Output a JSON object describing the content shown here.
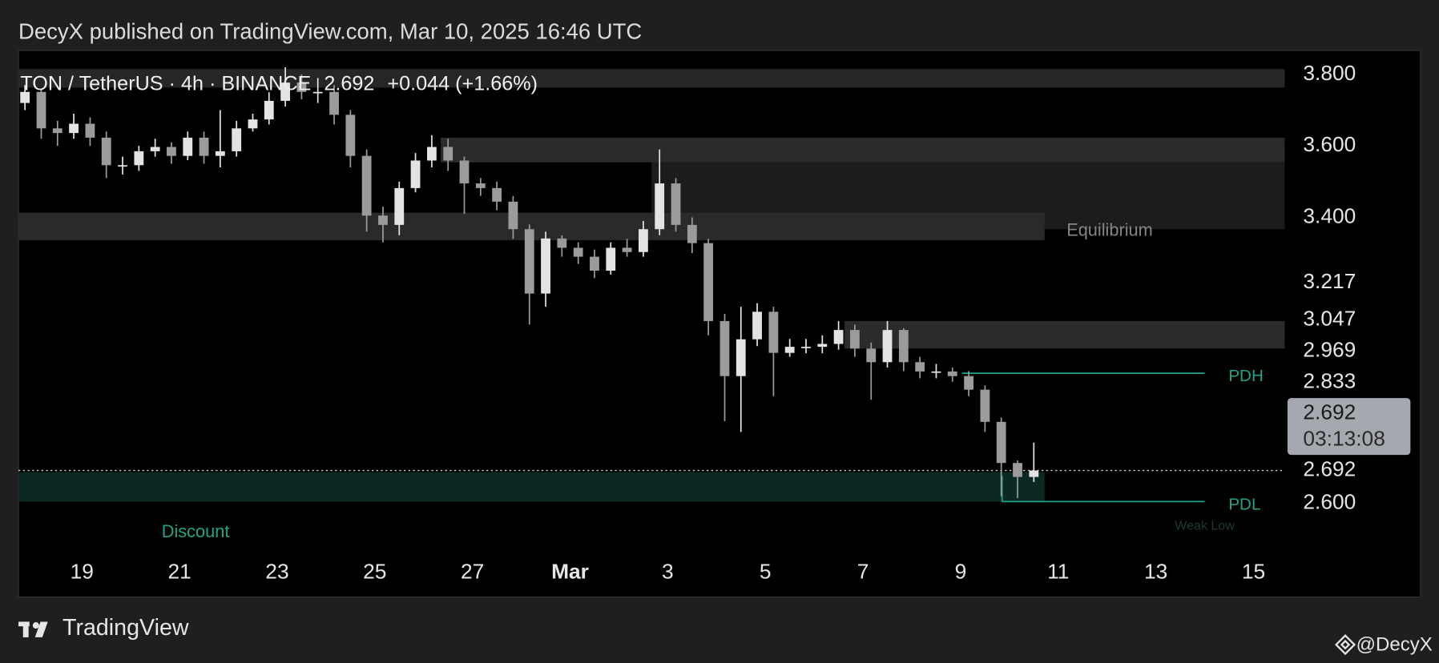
{
  "header": {
    "published": "DecyX published on TradingView.com, Mar 10, 2025 16:46 UTC"
  },
  "footer": {
    "brand": "TradingView",
    "author": "@DecyX"
  },
  "chart_data": {
    "type": "candlestick",
    "symbol": "TON / TetherUS · 4h · BINANCE",
    "price": "2.692",
    "change": "+0.044 (+1.66%)",
    "x": [
      17.833,
      18.167,
      18.5,
      18.833,
      19.167,
      19.5,
      19.833,
      20.167,
      20.5,
      20.833,
      21.167,
      21.5,
      21.833,
      22.167,
      22.5,
      22.833,
      23.167,
      23.5,
      23.833,
      24.167,
      24.5,
      24.833,
      25.167,
      25.5,
      25.833,
      26.167,
      26.5,
      26.833,
      27.167,
      27.5,
      27.833,
      28.167,
      28.5,
      28.833,
      29.167,
      29.5,
      29.833,
      30.167,
      30.5,
      30.833,
      31.167,
      31.5,
      31.833,
      32.167,
      32.5,
      32.833,
      33.167,
      33.5,
      33.833,
      34.167,
      34.5,
      34.833,
      35.167,
      35.5,
      35.833,
      36.167,
      36.5,
      36.833,
      37.167,
      37.5,
      37.833,
      38.167,
      38.5
    ],
    "open": [
      3.72,
      3.751,
      3.649,
      3.636,
      3.662,
      3.623,
      3.546,
      3.546,
      3.585,
      3.597,
      3.572,
      3.623,
      3.572,
      3.585,
      3.649,
      3.674,
      3.726,
      3.777,
      3.751,
      3.751,
      3.687,
      3.572,
      3.405,
      3.379,
      3.482,
      3.559,
      3.597,
      3.559,
      3.495,
      3.482,
      3.444,
      3.367,
      3.187,
      3.341,
      3.315,
      3.29,
      3.251,
      3.315,
      3.303,
      3.367,
      3.495,
      3.379,
      3.328,
      3.11,
      2.956,
      3.059,
      3.136,
      3.021,
      3.038,
      3.038,
      3.046,
      3.085,
      3.033,
      2.995,
      3.085,
      2.995,
      2.969,
      2.969,
      2.956,
      2.918,
      2.828,
      2.713,
      2.674
    ],
    "high": [
      3.77,
      3.76,
      3.67,
      3.69,
      3.68,
      3.64,
      3.57,
      3.6,
      3.62,
      3.61,
      3.64,
      3.64,
      3.7,
      3.67,
      3.69,
      3.75,
      3.82,
      3.8,
      3.79,
      3.77,
      3.7,
      3.59,
      3.43,
      3.5,
      3.58,
      3.63,
      3.62,
      3.57,
      3.51,
      3.5,
      3.46,
      3.38,
      3.36,
      3.35,
      3.33,
      3.31,
      3.33,
      3.34,
      3.39,
      3.59,
      3.51,
      3.4,
      3.34,
      3.13,
      3.15,
      3.16,
      3.15,
      3.06,
      3.06,
      3.07,
      3.11,
      3.1,
      3.05,
      3.11,
      3.09,
      3.01,
      2.99,
      2.98,
      2.97,
      2.93,
      2.84,
      2.72,
      2.77
    ],
    "low": [
      3.7,
      3.62,
      3.6,
      3.62,
      3.6,
      3.51,
      3.52,
      3.53,
      3.57,
      3.55,
      3.56,
      3.55,
      3.54,
      3.57,
      3.64,
      3.66,
      3.71,
      3.73,
      3.72,
      3.66,
      3.54,
      3.36,
      3.33,
      3.35,
      3.47,
      3.54,
      3.53,
      3.41,
      3.46,
      3.42,
      3.34,
      3.1,
      3.15,
      3.29,
      3.27,
      3.23,
      3.24,
      3.29,
      3.29,
      3.35,
      3.36,
      3.3,
      3.07,
      2.83,
      2.8,
      3.04,
      2.9,
      3.01,
      3.02,
      3.02,
      3.03,
      3.01,
      2.89,
      2.98,
      2.97,
      2.95,
      2.95,
      2.94,
      2.9,
      2.8,
      2.62,
      2.615,
      2.66
    ],
    "close": [
      3.751,
      3.649,
      3.636,
      3.662,
      3.623,
      3.546,
      3.546,
      3.585,
      3.597,
      3.572,
      3.623,
      3.572,
      3.585,
      3.649,
      3.674,
      3.726,
      3.777,
      3.751,
      3.751,
      3.687,
      3.572,
      3.405,
      3.379,
      3.482,
      3.559,
      3.597,
      3.559,
      3.495,
      3.482,
      3.444,
      3.367,
      3.187,
      3.341,
      3.315,
      3.29,
      3.251,
      3.315,
      3.303,
      3.367,
      3.495,
      3.379,
      3.328,
      3.11,
      2.956,
      3.059,
      3.136,
      3.021,
      3.038,
      3.038,
      3.046,
      3.085,
      3.033,
      2.995,
      3.085,
      2.995,
      2.969,
      2.969,
      2.956,
      2.918,
      2.828,
      2.713,
      2.674,
      2.692
    ],
    "up_color": "#e3e3e3",
    "down_color": "#9b9b9b",
    "xlim": [
      17.7,
      43.64
    ],
    "xticks": [
      19,
      21,
      23,
      25,
      27,
      {
        "value": 29,
        "label": "Mar"
      },
      {
        "value": 31,
        "label": "3"
      },
      {
        "value": 33,
        "label": "5"
      },
      {
        "value": 35,
        "label": "7"
      },
      {
        "value": 37,
        "label": "9"
      },
      {
        "value": 39,
        "label": "11"
      },
      {
        "value": 41,
        "label": "13"
      },
      {
        "value": 43,
        "label": "15"
      }
    ],
    "ylim": [
      2.469,
      3.867
    ],
    "yticks": [
      {
        "value": 3.8,
        "label": "3.800"
      },
      {
        "value": 3.6,
        "label": "3.600"
      },
      {
        "value": 3.4,
        "label": "3.400"
      },
      {
        "value": 3.217,
        "label": "3.217"
      },
      {
        "value": 3.047,
        "label": "3.047"
      },
      {
        "value": 2.969,
        "label": "2.969"
      },
      {
        "value": 2.833,
        "label": "2.833"
      },
      {
        "value": 2.692,
        "label": "2.692"
      },
      {
        "value": 2.6,
        "label": "2.600"
      }
    ],
    "grid": false,
    "zones": [
      {
        "x": [
          17.7,
          43.64
        ],
        "y": [
          3.763,
          3.815
        ],
        "color": "#262626"
      },
      {
        "x": [
          26.35,
          43.64
        ],
        "y": [
          3.554,
          3.623
        ],
        "color": "#2b2b2b"
      },
      {
        "x": [
          30.67,
          43.64
        ],
        "y": [
          3.367,
          3.554
        ],
        "color": "#1c1c1c"
      },
      {
        "x": [
          17.7,
          38.72
        ],
        "y": [
          3.336,
          3.413
        ],
        "color": "#2a2a2a",
        "label": "Equilibrium"
      },
      {
        "x": [
          34.62,
          43.64
        ],
        "y": [
          3.033,
          3.11
        ],
        "color": "#2b2b2b"
      },
      {
        "x": [
          17.7,
          38.72
        ],
        "y": [
          2.605,
          2.687
        ],
        "color": "#0c2823",
        "label": "Discount"
      }
    ],
    "levels": [
      {
        "name": "PDH",
        "value": 2.964,
        "x": [
          37.03,
          42.0
        ],
        "color": "#1fa487"
      },
      {
        "name": "PDL",
        "value": 2.605,
        "x": [
          37.85,
          42.0
        ],
        "color": "#1fa487",
        "sublabel": "Weak Low"
      }
    ],
    "last_price": {
      "value": 2.692,
      "label": "2.692",
      "countdown": "03:13:08"
    }
  }
}
